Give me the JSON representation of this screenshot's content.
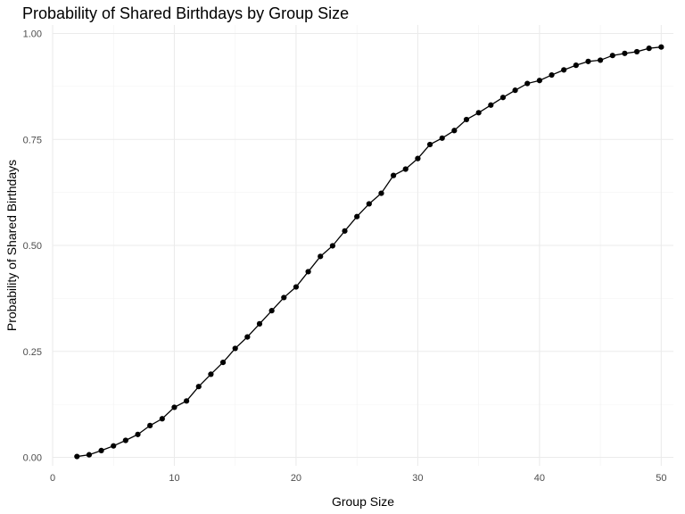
{
  "chart_data": {
    "type": "line",
    "title": "Probability of Shared Birthdays by Group Size",
    "xlabel": "Group Size",
    "ylabel": "Probability of Shared Birthdays",
    "xlim": [
      0,
      51
    ],
    "ylim": [
      -0.02,
      1.02
    ],
    "x_ticks": [
      0,
      10,
      20,
      30,
      40,
      50
    ],
    "x_tick_labels": [
      "0",
      "10",
      "20",
      "30",
      "40",
      "50"
    ],
    "y_ticks": [
      0,
      0.25,
      0.5,
      0.75,
      1
    ],
    "y_tick_labels": [
      "0.00",
      "0.25",
      "0.50",
      "0.75",
      "1.00"
    ],
    "grid": true,
    "series": [
      {
        "markers": true,
        "color": "#000000",
        "x": [
          2,
          3,
          4,
          5,
          6,
          7,
          8,
          9,
          10,
          11,
          12,
          13,
          14,
          15,
          16,
          17,
          18,
          19,
          20,
          21,
          22,
          23,
          24,
          25,
          26,
          27,
          28,
          29,
          30,
          31,
          32,
          33,
          34,
          35,
          36,
          37,
          38,
          39,
          40,
          41,
          42,
          43,
          44,
          45,
          46,
          47,
          48,
          49,
          50
        ],
        "y": [
          0.002,
          0.006,
          0.016,
          0.027,
          0.04,
          0.054,
          0.075,
          0.091,
          0.118,
          0.133,
          0.167,
          0.196,
          0.224,
          0.257,
          0.284,
          0.315,
          0.346,
          0.377,
          0.402,
          0.438,
          0.474,
          0.499,
          0.534,
          0.568,
          0.598,
          0.623,
          0.665,
          0.68,
          0.705,
          0.738,
          0.753,
          0.771,
          0.797,
          0.813,
          0.831,
          0.849,
          0.866,
          0.882,
          0.889,
          0.902,
          0.914,
          0.925,
          0.934,
          0.937,
          0.948,
          0.953,
          0.957,
          0.965,
          0.968
        ]
      }
    ]
  }
}
